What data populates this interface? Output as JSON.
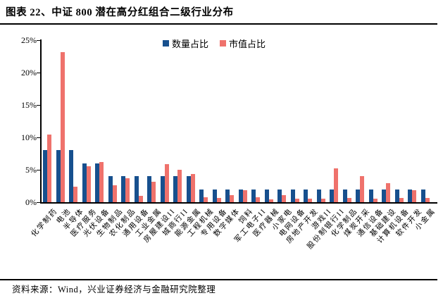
{
  "title": "图表 22、中证 800 潜在高分红组合二级行业分布",
  "source": "资料来源：Wind，兴业证券经济与金融研究院整理",
  "colors": {
    "quantity_bar": "#17508E",
    "market_value_bar": "#EF726C",
    "axis": "#000000",
    "background": "#FFFFFF"
  },
  "chart_data": {
    "type": "bar",
    "title": "中证800潜在高分红组合二级行业分布",
    "categories": [
      "化学制药",
      "电池",
      "半导体",
      "医疗服务",
      "光伏设备",
      "生物制品",
      "农化制品",
      "通用设备",
      "工业金属",
      "房屋建设II",
      "城商行II",
      "能源金属",
      "工程机械",
      "专用设备",
      "数字媒体",
      "饲料",
      "军工电子II",
      "医疗器械",
      "小家电",
      "电网设备",
      "房地产开发",
      "游戏II",
      "股份制银行II",
      "化学制品",
      "煤炭开采",
      "通信设备",
      "基础建设",
      "计算机设备",
      "软件开发",
      "小金属"
    ],
    "series": [
      {
        "name": "数量占比",
        "color": "#17508E",
        "values": [
          8,
          8,
          8,
          6,
          6,
          4,
          4,
          4,
          4,
          4,
          4,
          4,
          2,
          2,
          2,
          2,
          2,
          2,
          2,
          2,
          2,
          2,
          2,
          2,
          2,
          2,
          2,
          2,
          2,
          2
        ]
      },
      {
        "name": "市值占比",
        "color": "#EF726C",
        "values": [
          10.4,
          23.2,
          2.4,
          5.5,
          6.2,
          2.6,
          3.7,
          1.0,
          3.1,
          5.9,
          5.0,
          4.3,
          0.8,
          0.7,
          1.1,
          1.9,
          0.8,
          0.4,
          1.1,
          0.5,
          0.5,
          0.5,
          5.2,
          0.7,
          4.0,
          0.5,
          2.9,
          0.6,
          1.8,
          0.6
        ]
      }
    ],
    "xlabel": "",
    "ylabel": "",
    "ylim": [
      0,
      25
    ],
    "yticks": [
      {
        "value": 0,
        "label": "0%"
      },
      {
        "value": 5,
        "label": "5%"
      },
      {
        "value": 10,
        "label": "10%"
      },
      {
        "value": 15,
        "label": "15%"
      },
      {
        "value": 20,
        "label": "20%"
      },
      {
        "value": 25,
        "label": "25%"
      }
    ],
    "grid": false,
    "legend_position": "top-center"
  }
}
